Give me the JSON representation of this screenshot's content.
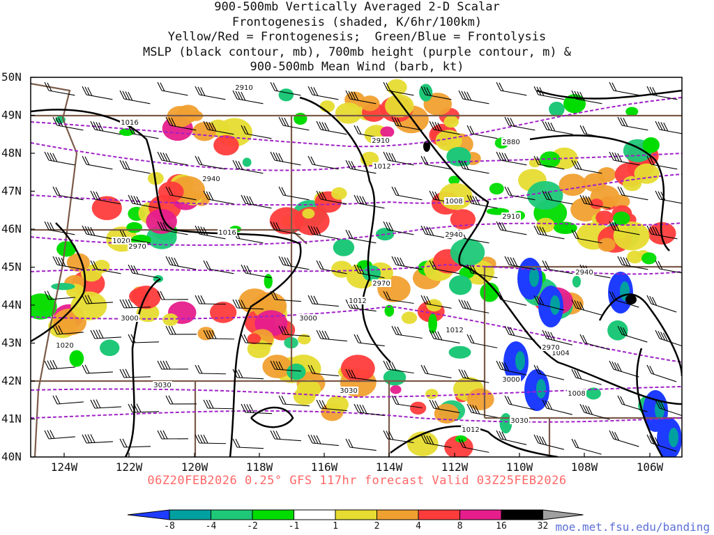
{
  "title_lines": [
    "900-500mb Vertically Averaged 2-D Scalar",
    "Frontogenesis (shaded, K/6hr/100km)",
    "Yellow/Red = Frontogenesis;  Green/Blue = Frontolysis",
    "MSLP (black contour, mb), 700mb height (purple contour, m) &",
    "900-500mb Mean Wind (barb, kt)"
  ],
  "axes": {
    "lat_labels": [
      "50N",
      "49N",
      "48N",
      "47N",
      "46N",
      "45N",
      "44N",
      "43N",
      "42N",
      "41N",
      "40N"
    ],
    "lon_labels": [
      "124W",
      "122W",
      "120W",
      "118W",
      "116W",
      "114W",
      "112W",
      "110W",
      "108W",
      "106W"
    ]
  },
  "contour_labels": {
    "mslp": [
      "1016",
      "1012",
      "1008",
      "1016",
      "1020",
      "1012",
      "1012",
      "1020",
      "1004",
      "1008",
      "1012"
    ],
    "height": [
      "2910",
      "2910",
      "2880",
      "2940",
      "2910",
      "2940",
      "2970",
      "2970",
      "2940",
      "3000",
      "3000",
      "2970",
      "3030",
      "3030",
      "3000",
      "3030"
    ]
  },
  "run_info": "06Z20FEB2026 0.25° GFS 117hr forecast Valid 03Z25FEB2026",
  "colorbar": {
    "ticks": [
      "-8",
      "-4",
      "-2",
      "-1",
      "1",
      "2",
      "4",
      "8",
      "16",
      "32"
    ],
    "colors": [
      "#1e3cff",
      "#00a0a0",
      "#1ec878",
      "#00dc00",
      "#ffffff",
      "#e6dc32",
      "#f0a030",
      "#ff3c3c",
      "#e61e8c",
      "#000000",
      "#a0a0a0"
    ]
  },
  "credit": "moe.met.fsu.edu/banding",
  "palette": {
    "state_border": "#7a5a48",
    "mslp_contour": "#000000",
    "height_contour": "#a020c8"
  }
}
